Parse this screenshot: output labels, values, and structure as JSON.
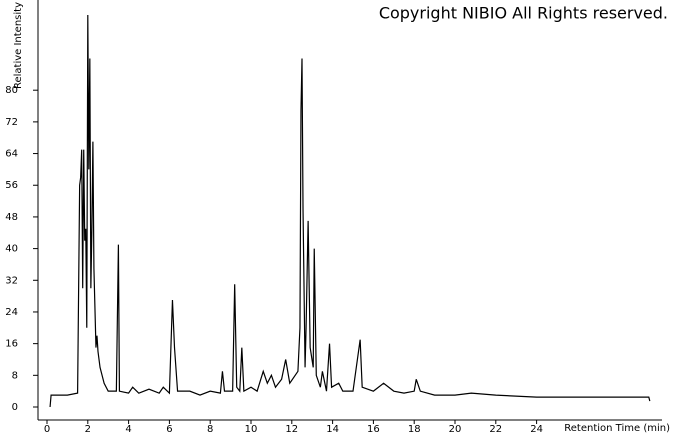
{
  "chart_data": {
    "type": "line",
    "title": "Copyright NIBIO All Rights reserved.",
    "y_label": "Relative Intensity",
    "x_label": "Retention Time (min)",
    "color": "#000000",
    "xlim": [
      0,
      30
    ],
    "ylim": [
      0,
      100
    ],
    "xticks": [
      0,
      2,
      4,
      6,
      8,
      10,
      12,
      14,
      16,
      18,
      20,
      22,
      24
    ],
    "yticks": [
      0,
      8,
      16,
      24,
      32,
      40,
      48,
      56,
      64,
      72,
      80
    ],
    "x": [
      0.15,
      0.2,
      1.0,
      1.5,
      1.6,
      1.65,
      1.7,
      1.75,
      1.8,
      1.85,
      1.9,
      1.95,
      2.0,
      2.05,
      2.1,
      2.15,
      2.2,
      2.25,
      2.3,
      2.4,
      2.45,
      2.5,
      2.6,
      2.8,
      3.0,
      3.4,
      3.5,
      3.55,
      4.0,
      4.2,
      4.5,
      5.0,
      5.5,
      5.7,
      6.0,
      6.15,
      6.25,
      6.4,
      7.0,
      7.5,
      8.0,
      8.5,
      8.6,
      8.7,
      9.1,
      9.2,
      9.3,
      9.45,
      9.55,
      9.65,
      10.0,
      10.3,
      10.6,
      10.8,
      11.0,
      11.2,
      11.5,
      11.7,
      11.9,
      12.3,
      12.4,
      12.45,
      12.5,
      12.55,
      12.65,
      12.7,
      12.8,
      12.9,
      13.05,
      13.1,
      13.2,
      13.4,
      13.5,
      13.7,
      13.85,
      13.95,
      14.3,
      14.5,
      15.0,
      15.35,
      15.45,
      16.0,
      16.5,
      17.0,
      17.5,
      18.0,
      18.1,
      18.3,
      19.0,
      20.0,
      20.8,
      22.0,
      24.0,
      26.0,
      28.0,
      29.5,
      29.55
    ],
    "values": [
      0,
      3,
      3,
      3.5,
      56,
      58,
      65,
      30,
      65,
      42,
      45,
      20,
      99,
      60,
      88,
      30,
      45,
      67,
      35,
      15,
      18,
      14,
      10,
      6,
      4,
      4,
      41,
      4,
      3.5,
      5,
      3.5,
      4.5,
      3.5,
      5,
      3.5,
      27,
      15,
      4,
      4,
      3,
      4,
      3.5,
      9,
      4,
      4,
      31,
      5,
      4,
      15,
      4,
      5,
      4,
      9,
      6,
      8,
      5,
      7,
      12,
      6,
      9,
      20,
      75,
      88,
      50,
      10,
      20,
      47,
      15,
      10,
      40,
      8,
      5,
      9,
      4,
      16,
      5,
      6,
      4,
      4,
      17,
      5,
      4,
      6,
      4,
      3.5,
      4,
      7,
      4,
      3,
      3,
      3.5,
      3,
      2.5,
      2.5,
      2.5,
      2.5,
      1.5
    ]
  }
}
